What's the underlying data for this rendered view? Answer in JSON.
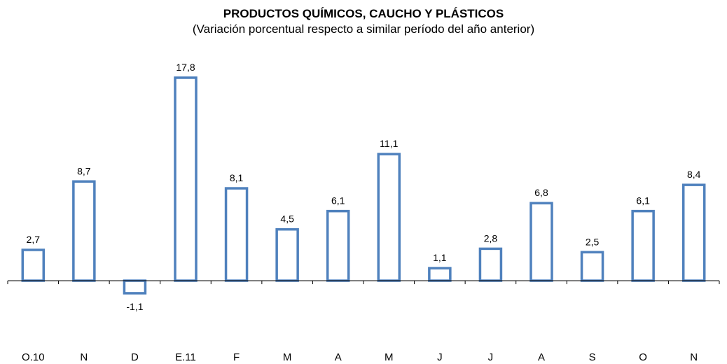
{
  "chart_data": {
    "type": "bar",
    "title": "PRODUCTOS QUÍMICOS, CAUCHO Y PLÁSTICOS",
    "subtitle": "(Variación porcentual respecto a similar período del año anterior)",
    "categories": [
      "O.10",
      "N",
      "D",
      "E.11",
      "F",
      "M",
      "A",
      "M",
      "J",
      "J",
      "A",
      "S",
      "O",
      "N"
    ],
    "values": [
      2.7,
      8.7,
      -1.1,
      17.8,
      8.1,
      4.5,
      6.1,
      11.1,
      1.1,
      2.8,
      6.8,
      2.5,
      6.1,
      8.4
    ],
    "value_labels": [
      "2,7",
      "8,7",
      "-1,1",
      "17,8",
      "8,1",
      "4,5",
      "6,1",
      "11,1",
      "1,1",
      "2,8",
      "6,8",
      "2,5",
      "6,1",
      "8,4"
    ],
    "bar_style": "outline",
    "bar_color": "#4f81bd",
    "ylim": [
      -2,
      19
    ],
    "grid": false,
    "legend": "none"
  }
}
